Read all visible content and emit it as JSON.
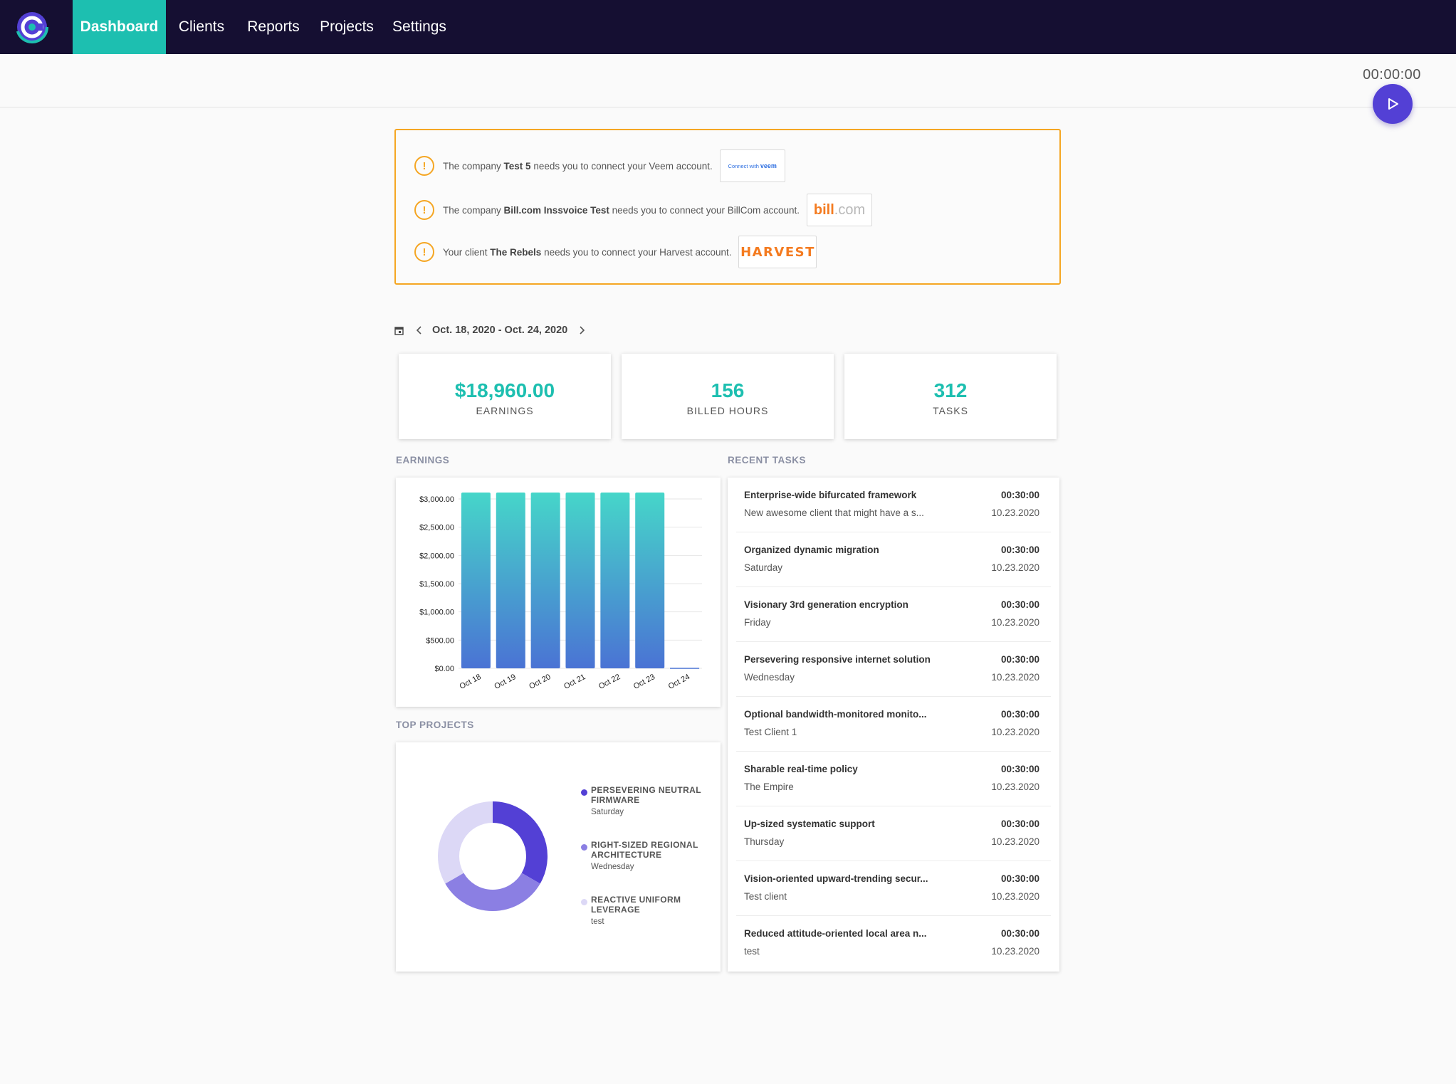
{
  "nav": {
    "items": [
      {
        "label": "Dashboard",
        "active": true
      },
      {
        "label": "Clients",
        "active": false
      },
      {
        "label": "Reports",
        "active": false
      },
      {
        "label": "Projects",
        "active": false
      },
      {
        "label": "Settings",
        "active": false
      }
    ]
  },
  "timer": {
    "value": "00:00:00",
    "play_icon": "play-icon"
  },
  "colors": {
    "nav_bg": "#150f32",
    "accent_teal": "#1dbfb0",
    "play_purple": "#5340d5",
    "warning": "#f5a623"
  },
  "alerts": [
    {
      "pre": "The company ",
      "name": "Test 5",
      "post": " needs you to connect your Veem account.",
      "button": {
        "pre": "Connect with",
        "brand": "veem"
      }
    },
    {
      "pre": "The company ",
      "name": "Bill.com Inssvoice Test",
      "post": " needs you to connect your BillCom account.",
      "button": {
        "brand_a": "bill",
        "brand_b": ".com"
      }
    },
    {
      "pre": "Your client ",
      "name": "The Rebels",
      "post": " needs you to connect your Harvest account.",
      "button": {
        "brand": "HARVEST"
      }
    }
  ],
  "date_range": {
    "label": "Oct. 18, 2020 - Oct. 24, 2020"
  },
  "stats": [
    {
      "value": "$18,960.00",
      "label": "EARNINGS"
    },
    {
      "value": "156",
      "label": "BILLED HOURS"
    },
    {
      "value": "312",
      "label": "TASKS"
    }
  ],
  "sections": {
    "earnings": "EARNINGS",
    "recent_tasks": "RECENT TASKS",
    "top_projects": "TOP PROJECTS"
  },
  "chart_data": [
    {
      "type": "bar",
      "categories": [
        "Oct 18",
        "Oct 19",
        "Oct 20",
        "Oct 21",
        "Oct 22",
        "Oct 23",
        "Oct 24"
      ],
      "values": [
        3160,
        3160,
        3160,
        3160,
        3160,
        3160,
        0
      ],
      "ylim": [
        0,
        3000
      ],
      "yticks": [
        "$0.00",
        "$500.00",
        "$1,000.00",
        "$1,500.00",
        "$2,000.00",
        "$2,500.00",
        "$3,000.00"
      ],
      "grid": true,
      "colors": {
        "top": "#46d6c9",
        "bottom": "#4a73d4"
      }
    },
    {
      "type": "pie",
      "donut": true,
      "slices": [
        {
          "label": "PERSEVERING NEUTRAL FIRMWARE",
          "sub": "Saturday",
          "value": 33.33,
          "color": "#5340d5"
        },
        {
          "label": "RIGHT-SIZED REGIONAL ARCHITECTURE",
          "sub": "Wednesday",
          "value": 33.33,
          "color": "#8b7fe3"
        },
        {
          "label": "REACTIVE UNIFORM LEVERAGE",
          "sub": "test",
          "value": 33.34,
          "color": "#dcd8f6"
        }
      ]
    }
  ],
  "tasks": [
    {
      "title": "Enterprise-wide bifurcated framework",
      "subtitle": "New awesome client that might have a s...",
      "duration": "00:30:00",
      "date": "10.23.2020"
    },
    {
      "title": "Organized dynamic migration",
      "subtitle": "Saturday",
      "duration": "00:30:00",
      "date": "10.23.2020"
    },
    {
      "title": "Visionary 3rd generation encryption",
      "subtitle": "Friday",
      "duration": "00:30:00",
      "date": "10.23.2020"
    },
    {
      "title": "Persevering responsive internet solution",
      "subtitle": "Wednesday",
      "duration": "00:30:00",
      "date": "10.23.2020"
    },
    {
      "title": "Optional bandwidth-monitored monito...",
      "subtitle": "Test Client 1",
      "duration": "00:30:00",
      "date": "10.23.2020"
    },
    {
      "title": "Sharable real-time policy",
      "subtitle": "The Empire",
      "duration": "00:30:00",
      "date": "10.23.2020"
    },
    {
      "title": "Up-sized systematic support",
      "subtitle": "Thursday",
      "duration": "00:30:00",
      "date": "10.23.2020"
    },
    {
      "title": "Vision-oriented upward-trending secur...",
      "subtitle": "Test client",
      "duration": "00:30:00",
      "date": "10.23.2020"
    },
    {
      "title": "Reduced attitude-oriented local area n...",
      "subtitle": "test",
      "duration": "00:30:00",
      "date": "10.23.2020"
    }
  ]
}
